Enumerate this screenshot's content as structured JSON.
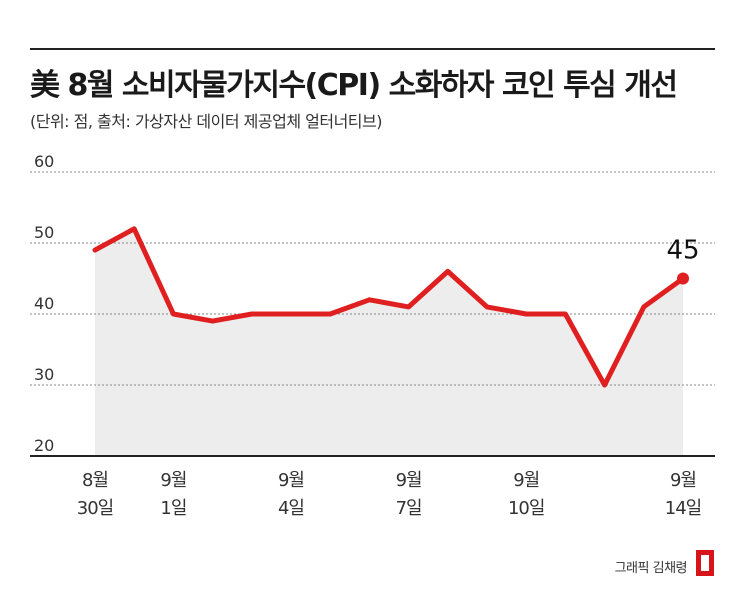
{
  "title": "美 8월 소비자물가지수(CPI) 소화하자 코인 투심 개선",
  "subtitle": "(단위: 점, 출처: 가상자산 데이터 제공업체 얼터너티브)",
  "credit": "그래픽 김채령",
  "colors": {
    "line": "#e02020",
    "area": "#ededed",
    "grid": "#888888",
    "axis": "#222222",
    "text": "#333333"
  },
  "chart_data": {
    "type": "area",
    "ylim": [
      20,
      60
    ],
    "yticks": [
      20,
      30,
      40,
      50,
      60
    ],
    "values": [
      49,
      52,
      40,
      39,
      40,
      40,
      40,
      42,
      41,
      46,
      41,
      40,
      40,
      30,
      41,
      45
    ],
    "xticks": [
      {
        "index": 0,
        "line1": "8월",
        "line2": "30일"
      },
      {
        "index": 2,
        "line1": "9월",
        "line2": "1일"
      },
      {
        "index": 5,
        "line1": "9월",
        "line2": "4일"
      },
      {
        "index": 8,
        "line1": "9월",
        "line2": "7일"
      },
      {
        "index": 11,
        "line1": "9월",
        "line2": "10일"
      },
      {
        "index": 15,
        "line1": "9월",
        "line2": "14일"
      }
    ],
    "annotation": {
      "index": 15,
      "text": "45"
    },
    "grid": true
  }
}
